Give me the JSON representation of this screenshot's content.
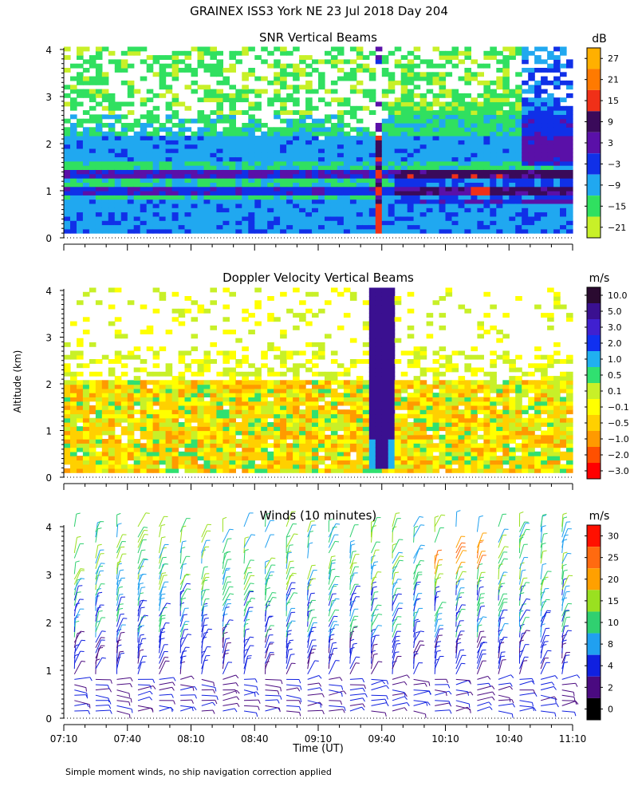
{
  "title": "GRAINEX ISS3 York NE  23 Jul 2018 Day 204",
  "ylabel": "Altitude (km)",
  "xlabel": "Time (UT)",
  "footnote": "Simple moment winds, no ship navigation correction applied",
  "chart_data": [
    {
      "type": "heatmap",
      "title": "SNR Vertical Beams",
      "unit": "dB",
      "x_ticks": [
        "07:10",
        "07:40",
        "08:10",
        "08:40",
        "09:10",
        "09:40",
        "10:10",
        "10:40",
        "11:10"
      ],
      "y_ticks": [
        "0",
        "1",
        "2",
        "3",
        "4"
      ],
      "ylim": [
        0,
        4
      ],
      "colorbar": {
        "labels": [
          "27",
          "21",
          "15",
          "9",
          "3",
          "−3",
          "−9",
          "−15",
          "−21"
        ],
        "colors": [
          "#ffb000",
          "#ff7a00",
          "#f03018",
          "#3a0a5a",
          "#5a10a8",
          "#1030e8",
          "#20a8f0",
          "#30e060",
          "#c8f028"
        ]
      },
      "features": {
        "strong_layers_km": [
          1.3,
          0.95
        ],
        "convective_column_time": "09:40",
        "background_top_km": 2.0
      }
    },
    {
      "type": "heatmap",
      "title": "Doppler Velocity Vertical Beams",
      "unit": "m/s",
      "x_ticks": [
        "07:10",
        "07:40",
        "08:10",
        "08:40",
        "09:10",
        "09:40",
        "10:10",
        "10:40",
        "11:10"
      ],
      "y_ticks": [
        "0",
        "1",
        "2",
        "3",
        "4"
      ],
      "ylim": [
        0,
        4
      ],
      "colorbar": {
        "labels": [
          "10.0",
          "5.0",
          "3.0",
          "2.0",
          "1.0",
          "0.5",
          "0.1",
          "−0.1",
          "−0.5",
          "−1.0",
          "−2.0",
          "−3.0"
        ],
        "colors": [
          "#2a0a30",
          "#3a1090",
          "#4020d0",
          "#1030f0",
          "#20b0f0",
          "#30e070",
          "#c8f028",
          "#ffff00",
          "#ffd000",
          "#ff9a00",
          "#ff5000",
          "#ff0000"
        ]
      },
      "features": {
        "updraft_column_time": "09:40",
        "updraft_top_km": 4.0,
        "updraft_bottom_km": 0.1
      }
    },
    {
      "type": "scatter",
      "title": "Winds (10 minutes)",
      "unit": "m/s",
      "x_ticks": [
        "07:10",
        "07:40",
        "08:10",
        "08:40",
        "09:10",
        "09:40",
        "10:10",
        "10:40",
        "11:10"
      ],
      "y_ticks": [
        "0",
        "1",
        "2",
        "3",
        "4"
      ],
      "ylim": [
        0,
        4
      ],
      "colorbar": {
        "labels": [
          "30",
          "25",
          "20",
          "15",
          "10",
          "8",
          "4",
          "2",
          "0"
        ],
        "colors": [
          "#ff1000",
          "#ff6a10",
          "#ffa000",
          "#9ae020",
          "#30d070",
          "#20a0f0",
          "#1020e0",
          "#4a0a80",
          "#000000"
        ]
      },
      "wind_columns_minutes_after_0710": [
        5,
        15,
        25,
        35,
        45,
        55,
        65,
        75,
        85,
        95,
        105,
        115,
        125,
        135,
        145,
        155,
        165,
        175,
        185,
        195,
        205,
        215,
        225,
        235
      ]
    }
  ]
}
